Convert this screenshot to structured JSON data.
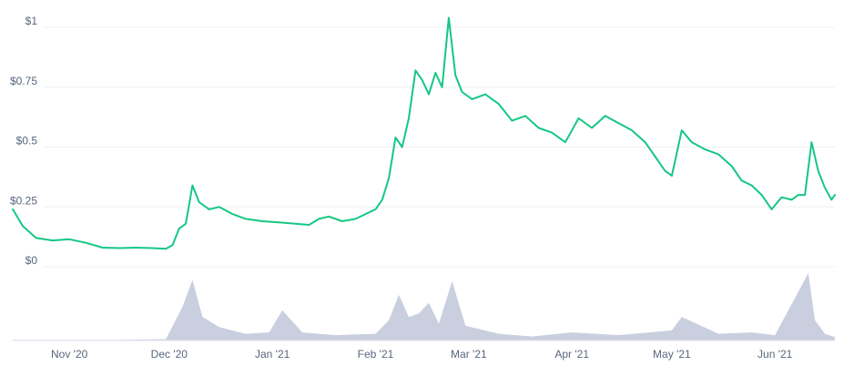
{
  "colors": {
    "price_line": "#16c784",
    "volume_fill": "#c9cfde",
    "grid": "#eef0f4",
    "axis_text": "#58667e",
    "baseline": "#e3e6ec"
  },
  "chart_data": [
    {
      "type": "line",
      "title": "",
      "xlabel": "",
      "ylabel": "",
      "grid": true,
      "ylim": [
        0,
        1.05
      ],
      "y_ticks": [
        {
          "value": 1,
          "label": "$1"
        },
        {
          "value": 0.75,
          "label": "$0.75"
        },
        {
          "value": 0.5,
          "label": "$0.5"
        },
        {
          "value": 0.25,
          "label": "$0.25"
        },
        {
          "value": 0,
          "label": "$0"
        }
      ],
      "x_range": [
        "2020-10-15",
        "2021-06-19"
      ],
      "x_ticks": [
        {
          "date": "2020-11-01",
          "label": "Nov '20"
        },
        {
          "date": "2020-12-01",
          "label": "Dec '20"
        },
        {
          "date": "2021-01-01",
          "label": "Jan '21"
        },
        {
          "date": "2021-02-01",
          "label": "Feb '21"
        },
        {
          "date": "2021-03-01",
          "label": "Mar '21"
        },
        {
          "date": "2021-04-01",
          "label": "Apr '21"
        },
        {
          "date": "2021-05-01",
          "label": "May '21"
        },
        {
          "date": "2021-06-01",
          "label": "Jun '21"
        }
      ],
      "series": [
        {
          "points": [
            [
              "2020-10-15",
              0.24
            ],
            [
              "2020-10-18",
              0.17
            ],
            [
              "2020-10-22",
              0.12
            ],
            [
              "2020-10-27",
              0.11
            ],
            [
              "2020-11-01",
              0.115
            ],
            [
              "2020-11-06",
              0.1
            ],
            [
              "2020-11-11",
              0.08
            ],
            [
              "2020-11-16",
              0.078
            ],
            [
              "2020-11-21",
              0.08
            ],
            [
              "2020-11-26",
              0.078
            ],
            [
              "2020-11-30",
              0.075
            ],
            [
              "2020-12-02",
              0.09
            ],
            [
              "2020-12-04",
              0.16
            ],
            [
              "2020-12-06",
              0.18
            ],
            [
              "2020-12-08",
              0.34
            ],
            [
              "2020-12-10",
              0.27
            ],
            [
              "2020-12-13",
              0.24
            ],
            [
              "2020-12-16",
              0.25
            ],
            [
              "2020-12-20",
              0.22
            ],
            [
              "2020-12-24",
              0.2
            ],
            [
              "2020-12-29",
              0.19
            ],
            [
              "2021-01-03",
              0.185
            ],
            [
              "2021-01-08",
              0.18
            ],
            [
              "2021-01-12",
              0.175
            ],
            [
              "2021-01-15",
              0.2
            ],
            [
              "2021-01-18",
              0.21
            ],
            [
              "2021-01-22",
              0.19
            ],
            [
              "2021-01-26",
              0.2
            ],
            [
              "2021-01-29",
              0.22
            ],
            [
              "2021-02-01",
              0.24
            ],
            [
              "2021-02-03",
              0.28
            ],
            [
              "2021-02-05",
              0.37
            ],
            [
              "2021-02-07",
              0.54
            ],
            [
              "2021-02-09",
              0.5
            ],
            [
              "2021-02-11",
              0.62
            ],
            [
              "2021-02-13",
              0.82
            ],
            [
              "2021-02-15",
              0.78
            ],
            [
              "2021-02-17",
              0.72
            ],
            [
              "2021-02-19",
              0.81
            ],
            [
              "2021-02-21",
              0.75
            ],
            [
              "2021-02-23",
              1.04
            ],
            [
              "2021-02-25",
              0.8
            ],
            [
              "2021-02-27",
              0.73
            ],
            [
              "2021-03-02",
              0.7
            ],
            [
              "2021-03-06",
              0.72
            ],
            [
              "2021-03-10",
              0.68
            ],
            [
              "2021-03-14",
              0.61
            ],
            [
              "2021-03-18",
              0.63
            ],
            [
              "2021-03-22",
              0.58
            ],
            [
              "2021-03-26",
              0.56
            ],
            [
              "2021-03-30",
              0.52
            ],
            [
              "2021-04-03",
              0.62
            ],
            [
              "2021-04-07",
              0.58
            ],
            [
              "2021-04-11",
              0.63
            ],
            [
              "2021-04-15",
              0.6
            ],
            [
              "2021-04-19",
              0.57
            ],
            [
              "2021-04-23",
              0.52
            ],
            [
              "2021-04-26",
              0.46
            ],
            [
              "2021-04-29",
              0.4
            ],
            [
              "2021-05-01",
              0.38
            ],
            [
              "2021-05-04",
              0.57
            ],
            [
              "2021-05-07",
              0.52
            ],
            [
              "2021-05-11",
              0.49
            ],
            [
              "2021-05-15",
              0.47
            ],
            [
              "2021-05-19",
              0.42
            ],
            [
              "2021-05-22",
              0.36
            ],
            [
              "2021-05-25",
              0.34
            ],
            [
              "2021-05-28",
              0.3
            ],
            [
              "2021-05-31",
              0.24
            ],
            [
              "2021-06-03",
              0.29
            ],
            [
              "2021-06-06",
              0.28
            ],
            [
              "2021-06-08",
              0.3
            ],
            [
              "2021-06-10",
              0.3
            ],
            [
              "2021-06-12",
              0.52
            ],
            [
              "2021-06-14",
              0.4
            ],
            [
              "2021-06-16",
              0.33
            ],
            [
              "2021-06-18",
              0.28
            ],
            [
              "2021-06-19",
              0.3
            ]
          ]
        }
      ]
    },
    {
      "type": "bar",
      "title": "",
      "xlabel": "",
      "ylabel": "",
      "x_range": [
        "2020-10-15",
        "2021-06-19"
      ],
      "ylim": [
        0,
        1
      ],
      "volume_points": [
        [
          "2020-10-15",
          0.01
        ],
        [
          "2020-11-15",
          0.01
        ],
        [
          "2020-11-30",
          0.02
        ],
        [
          "2020-12-05",
          0.5
        ],
        [
          "2020-12-08",
          0.9
        ],
        [
          "2020-12-11",
          0.35
        ],
        [
          "2020-12-16",
          0.2
        ],
        [
          "2020-12-24",
          0.1
        ],
        [
          "2020-12-31",
          0.12
        ],
        [
          "2021-01-04",
          0.45
        ],
        [
          "2021-01-10",
          0.12
        ],
        [
          "2021-01-20",
          0.08
        ],
        [
          "2021-02-01",
          0.1
        ],
        [
          "2021-02-05",
          0.3
        ],
        [
          "2021-02-08",
          0.68
        ],
        [
          "2021-02-11",
          0.35
        ],
        [
          "2021-02-14",
          0.4
        ],
        [
          "2021-02-17",
          0.56
        ],
        [
          "2021-02-20",
          0.25
        ],
        [
          "2021-02-24",
          0.88
        ],
        [
          "2021-02-28",
          0.22
        ],
        [
          "2021-03-10",
          0.1
        ],
        [
          "2021-03-20",
          0.06
        ],
        [
          "2021-04-01",
          0.12
        ],
        [
          "2021-04-15",
          0.08
        ],
        [
          "2021-05-01",
          0.15
        ],
        [
          "2021-05-04",
          0.35
        ],
        [
          "2021-05-15",
          0.1
        ],
        [
          "2021-05-25",
          0.12
        ],
        [
          "2021-06-01",
          0.08
        ],
        [
          "2021-06-11",
          1.0
        ],
        [
          "2021-06-13",
          0.3
        ],
        [
          "2021-06-16",
          0.1
        ],
        [
          "2021-06-19",
          0.05
        ]
      ]
    }
  ]
}
